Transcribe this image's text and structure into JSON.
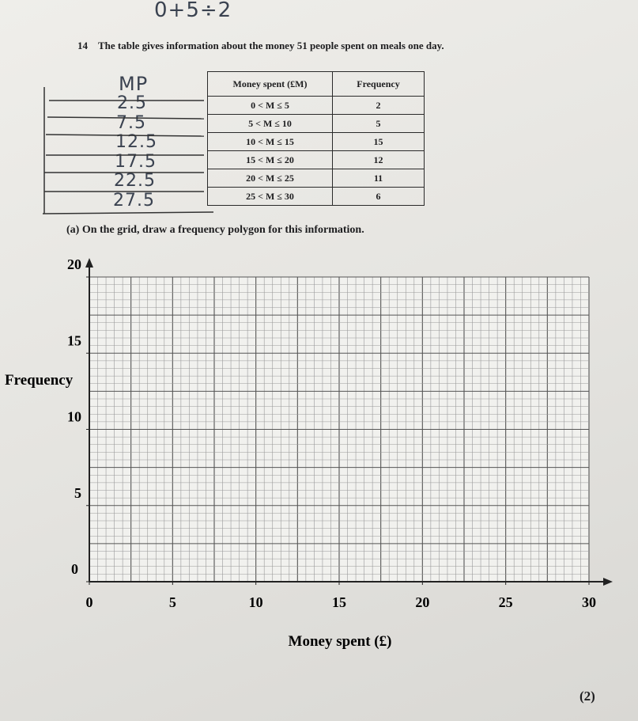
{
  "top_note": "0+5÷2",
  "question": {
    "number": "14",
    "text": "The table gives information about the money 51 people spent on meals one day."
  },
  "notes": {
    "header": "MP",
    "midpoints": [
      "2.5",
      "7.5",
      "12.5",
      "17.5",
      "22.5",
      "27.5"
    ]
  },
  "table": {
    "header": [
      "Money spent (£M)",
      "Frequency"
    ],
    "rows": [
      [
        "0 < M ≤ 5",
        2
      ],
      [
        "5 < M ≤ 10",
        5
      ],
      [
        "10 < M ≤ 15",
        15
      ],
      [
        "15 < M ≤ 20",
        12
      ],
      [
        "20 < M ≤ 25",
        11
      ],
      [
        "25 < M ≤ 30",
        6
      ]
    ]
  },
  "part_a": {
    "label": "(a)",
    "text": "On the grid, draw a frequency polygon for this information."
  },
  "grid": {
    "xlim": [
      0,
      30
    ],
    "ylim": [
      0,
      20
    ],
    "xticks": [
      0,
      5,
      10,
      15,
      20,
      25,
      30
    ],
    "yticks": [
      0,
      5,
      10,
      15,
      20
    ],
    "x_label": "Money spent (£)",
    "y_label": "Frequency"
  },
  "marks": "(2)"
}
